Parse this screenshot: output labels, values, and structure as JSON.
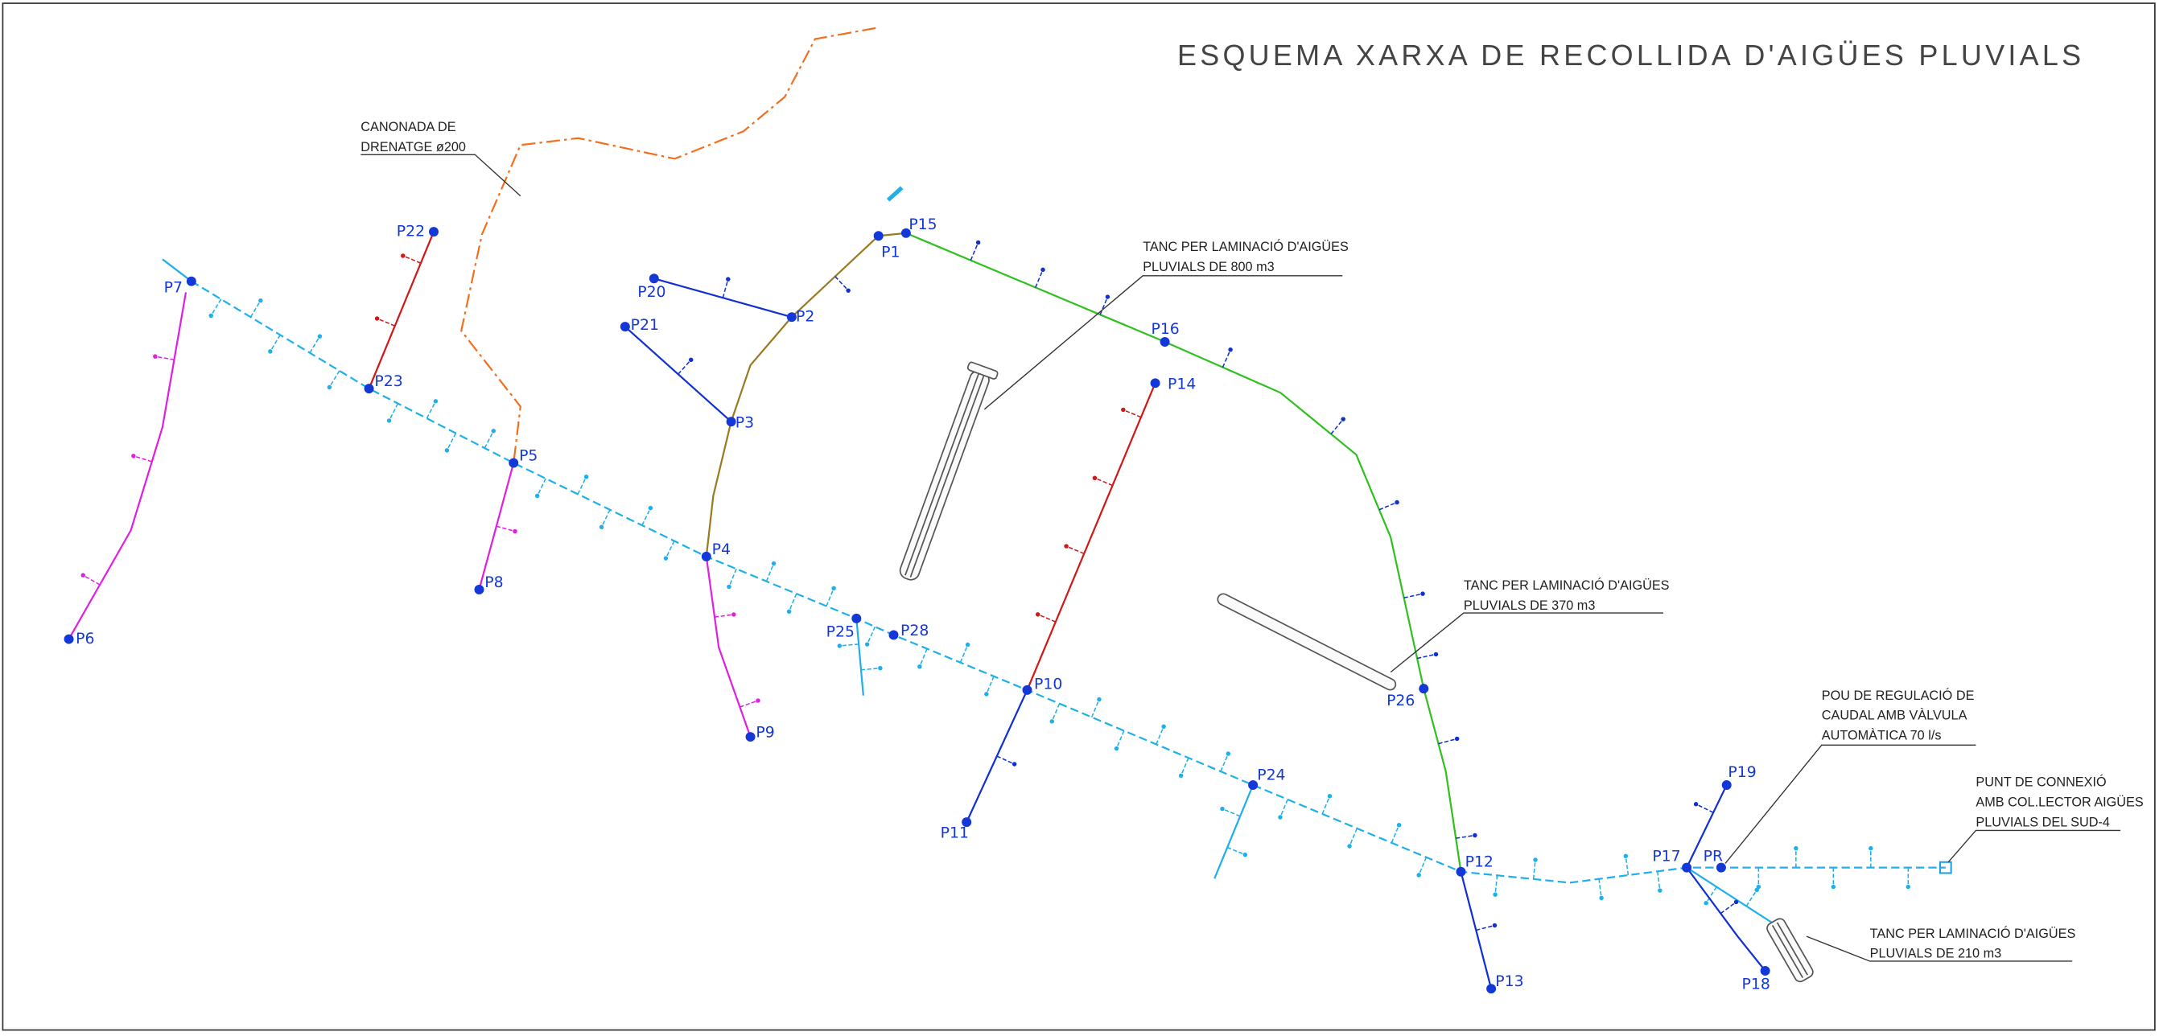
{
  "title": "ESQUEMA XARXA DE RECOLLIDA D'AIGÜES PLUVIALS",
  "nodes": [
    {
      "label": "P1"
    },
    {
      "label": "P2"
    },
    {
      "label": "P3"
    },
    {
      "label": "P4"
    },
    {
      "label": "P5"
    },
    {
      "label": "P6"
    },
    {
      "label": "P7"
    },
    {
      "label": "P8"
    },
    {
      "label": "P9"
    },
    {
      "label": "P10"
    },
    {
      "label": "P11"
    },
    {
      "label": "P12"
    },
    {
      "label": "P13"
    },
    {
      "label": "P14"
    },
    {
      "label": "P15"
    },
    {
      "label": "P16"
    },
    {
      "label": "P17"
    },
    {
      "label": "P18"
    },
    {
      "label": "P19"
    },
    {
      "label": "P20"
    },
    {
      "label": "P21"
    },
    {
      "label": "P22"
    },
    {
      "label": "P23"
    },
    {
      "label": "P24"
    },
    {
      "label": "P25"
    },
    {
      "label": "P26"
    },
    {
      "label": "P28"
    },
    {
      "label": "PR"
    }
  ],
  "annotations": [
    {
      "lines": [
        "CANONADA DE",
        "DRENATGE ø200"
      ]
    },
    {
      "lines": [
        "TANC PER LAMINACIÓ D'AIGÜES",
        "PLUVIALS DE 800 m3"
      ]
    },
    {
      "lines": [
        "TANC PER LAMINACIÓ D'AIGÜES",
        "PLUVIALS DE 370 m3"
      ]
    },
    {
      "lines": [
        "POU DE REGULACIÓ DE",
        "CAUDAL AMB VÀLVULA",
        "AUTOMÀTICA 70 l/s"
      ]
    },
    {
      "lines": [
        "PUNT DE CONNEXIÓ",
        "AMB COL.LECTOR AIGÜES",
        "PLUVIALS DEL SUD-4"
      ]
    },
    {
      "lines": [
        "TANC PER LAMINACIÓ D'AIGÜES",
        "PLUVIALS DE 210 m3"
      ]
    }
  ]
}
